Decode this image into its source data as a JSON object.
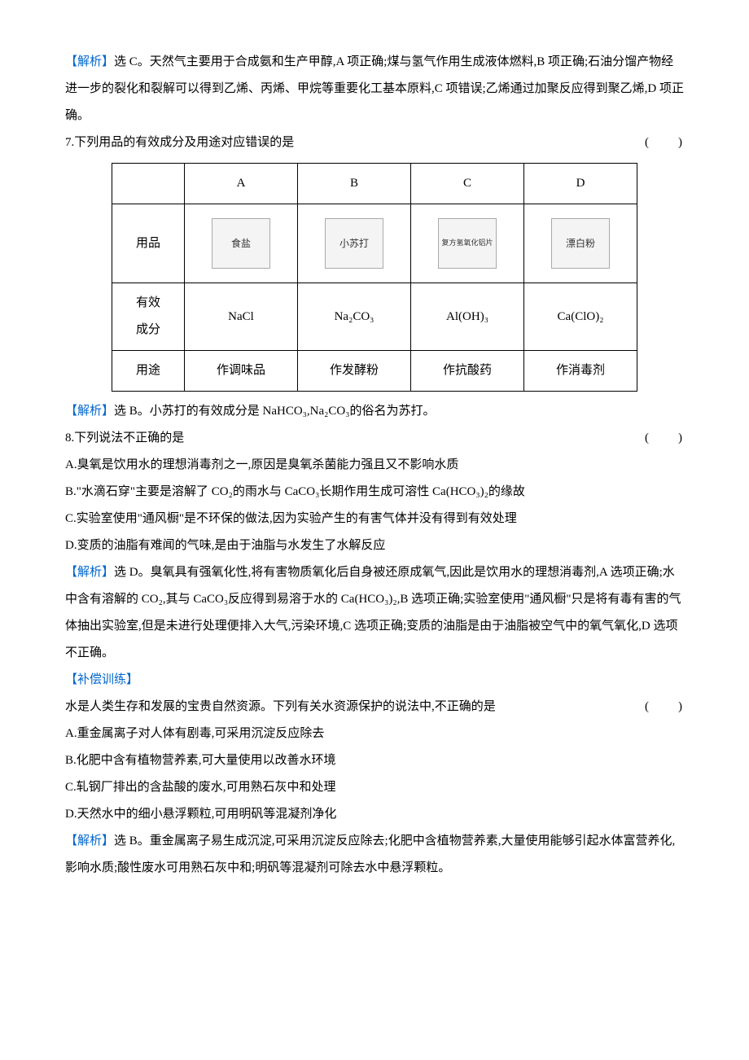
{
  "q6_analysis": {
    "label": "【解析】",
    "text": "选 C。天然气主要用于合成氨和生产甲醇,A 项正确;煤与氢气作用生成液体燃料,B 项正确;石油分馏产物经进一步的裂化和裂解可以得到乙烯、丙烯、甲烷等重要化工基本原料,C 项错误;乙烯通过加聚反应得到聚乙烯,D 项正确。"
  },
  "q7": {
    "stem": "7.下列用品的有效成分及用途对应错误的是",
    "blank": "(　　)",
    "table": {
      "cols": [
        "",
        "A",
        "B",
        "C",
        "D"
      ],
      "row_product_label": "用品",
      "products": [
        "食盐",
        "小苏打",
        "复方氢氧化铝片",
        "漂白粉"
      ],
      "row_component_label": "有效\n成分",
      "components": [
        "NaCl",
        "Na₂CO₃",
        "Al(OH)₃",
        "Ca(ClO)₂"
      ],
      "row_use_label": "用途",
      "uses": [
        "作调味品",
        "作发酵粉",
        "作抗酸药",
        "作消毒剂"
      ]
    },
    "analysis_label": "【解析】",
    "analysis": "选 B。小苏打的有效成分是 NaHCO₃,Na₂CO₃的俗名为苏打。"
  },
  "q8": {
    "stem": "8.下列说法不正确的是",
    "blank": "(　　)",
    "a": "A.臭氧是饮用水的理想消毒剂之一,原因是臭氧杀菌能力强且又不影响水质",
    "b": "B.\"水滴石穿\"主要是溶解了 CO₂的雨水与 CaCO₃长期作用生成可溶性 Ca(HCO₃)₂的缘故",
    "c": "C.实验室使用\"通风橱\"是不环保的做法,因为实验产生的有害气体并没有得到有效处理",
    "d": "D.变质的油脂有难闻的气味,是由于油脂与水发生了水解反应",
    "analysis_label": "【解析】",
    "analysis": "选 D。臭氧具有强氧化性,将有害物质氧化后自身被还原成氧气,因此是饮用水的理想消毒剂,A 选项正确;水中含有溶解的 CO₂,其与 CaCO₃反应得到易溶于水的 Ca(HCO₃)₂,B 选项正确;实验室使用\"通风橱\"只是将有毒有害的气体抽出实验室,但是未进行处理便排入大气,污染环境,C 选项正确;变质的油脂是由于油脂被空气中的氧气氧化,D 选项不正确。"
  },
  "supplement": {
    "label": "【补偿训练】",
    "stem": "水是人类生存和发展的宝贵自然资源。下列有关水资源保护的说法中,不正确的是",
    "blank": "(　　)",
    "a": "A.重金属离子对人体有剧毒,可采用沉淀反应除去",
    "b": "B.化肥中含有植物营养素,可大量使用以改善水环境",
    "c": "C.轧钢厂排出的含盐酸的废水,可用熟石灰中和处理",
    "d": "D.天然水中的细小悬浮颗粒,可用明矾等混凝剂净化",
    "analysis_label": "【解析】",
    "analysis": "选 B。重金属离子易生成沉淀,可采用沉淀反应除去;化肥中含植物营养素,大量使用能够引起水体富营养化,影响水质;酸性废水可用熟石灰中和;明矾等混凝剂可除去水中悬浮颗粒。"
  }
}
